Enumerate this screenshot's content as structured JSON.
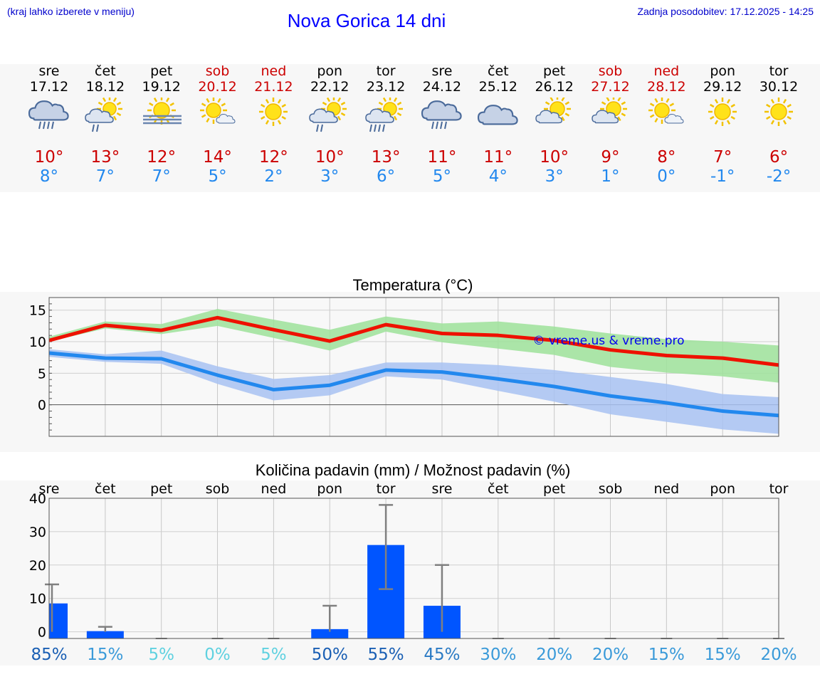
{
  "header": {
    "hint": "(kraj lahko izberete v meniju)",
    "title": "Nova Gorica 14 dni",
    "updated": "Zadnja posodobitev: 17.12.2025 - 14:25"
  },
  "colors": {
    "max_line": "#ee1100",
    "max_band": "#9ee29a",
    "min_line": "#2288ee",
    "min_band": "#a8c2f2",
    "bar": "#0055ff",
    "whisker": "#808080"
  },
  "days": [
    {
      "name": "sre",
      "date": "17.12",
      "weekend": false,
      "icon": "cloud-rain-icon",
      "tmax": "10°",
      "tmin": "8°"
    },
    {
      "name": "čet",
      "date": "18.12",
      "weekend": false,
      "icon": "sun-cloud-rain-icon",
      "tmax": "13°",
      "tmin": "7°"
    },
    {
      "name": "pet",
      "date": "19.12",
      "weekend": false,
      "icon": "sun-fog-icon",
      "tmax": "12°",
      "tmin": "7°"
    },
    {
      "name": "sob",
      "date": "20.12",
      "weekend": true,
      "icon": "sun-small-cloud-icon",
      "tmax": "14°",
      "tmin": "5°"
    },
    {
      "name": "ned",
      "date": "21.12",
      "weekend": true,
      "icon": "sun-icon",
      "tmax": "12°",
      "tmin": "2°"
    },
    {
      "name": "pon",
      "date": "22.12",
      "weekend": false,
      "icon": "sun-cloud-rain-icon",
      "tmax": "10°",
      "tmin": "3°"
    },
    {
      "name": "tor",
      "date": "23.12",
      "weekend": false,
      "icon": "sun-cloud-heavy-rain-icon",
      "tmax": "13°",
      "tmin": "6°"
    },
    {
      "name": "sre",
      "date": "24.12",
      "weekend": false,
      "icon": "cloud-rain-icon",
      "tmax": "11°",
      "tmin": "5°"
    },
    {
      "name": "čet",
      "date": "25.12",
      "weekend": false,
      "icon": "cloud-icon",
      "tmax": "11°",
      "tmin": "4°"
    },
    {
      "name": "pet",
      "date": "26.12",
      "weekend": false,
      "icon": "sun-cloud-icon",
      "tmax": "10°",
      "tmin": "3°"
    },
    {
      "name": "sob",
      "date": "27.12",
      "weekend": true,
      "icon": "sun-cloud-icon",
      "tmax": "9°",
      "tmin": "1°"
    },
    {
      "name": "ned",
      "date": "28.12",
      "weekend": true,
      "icon": "sun-small-cloud-icon",
      "tmax": "8°",
      "tmin": "0°"
    },
    {
      "name": "pon",
      "date": "29.12",
      "weekend": false,
      "icon": "sun-icon",
      "tmax": "7°",
      "tmin": "-1°"
    },
    {
      "name": "tor",
      "date": "30.12",
      "weekend": false,
      "icon": "sun-icon",
      "tmax": "6°",
      "tmin": "-2°"
    }
  ],
  "chart_data": [
    {
      "type": "line",
      "title": "Temperatura (°C)",
      "ylim": [
        -5,
        17
      ],
      "yticks": [
        0,
        5,
        10,
        15
      ],
      "grid": true,
      "watermark": "© vreme.us & vreme.pro",
      "x": [
        0,
        1,
        2,
        3,
        4,
        5,
        6,
        7,
        8,
        9,
        10,
        11,
        12,
        13
      ],
      "series": [
        {
          "name": "max",
          "values": [
            10.2,
            12.6,
            11.8,
            13.8,
            11.9,
            10.1,
            12.7,
            11.3,
            11.0,
            10.2,
            8.7,
            7.8,
            7.4,
            6.3
          ],
          "band_low": [
            10.0,
            12.1,
            11.2,
            12.5,
            10.6,
            8.6,
            11.6,
            9.9,
            8.9,
            7.9,
            6.0,
            5.1,
            4.5,
            3.5
          ],
          "band_high": [
            10.8,
            13.2,
            12.8,
            15.2,
            13.5,
            11.9,
            14.0,
            12.9,
            13.2,
            12.4,
            11.3,
            10.4,
            10.0,
            9.4
          ]
        },
        {
          "name": "min",
          "values": [
            8.2,
            7.4,
            7.3,
            4.7,
            2.4,
            3.1,
            5.5,
            5.2,
            4.1,
            2.9,
            1.4,
            0.3,
            -1.0,
            -1.7
          ],
          "band_low": [
            7.6,
            6.8,
            6.5,
            3.3,
            0.7,
            1.5,
            4.5,
            4.0,
            2.2,
            0.5,
            -1.5,
            -2.7,
            -3.9,
            -4.6
          ],
          "band_high": [
            8.8,
            8.0,
            8.6,
            6.1,
            4.1,
            4.7,
            6.7,
            6.7,
            6.3,
            5.5,
            4.4,
            3.3,
            1.7,
            1.2
          ]
        }
      ]
    },
    {
      "type": "bar",
      "title": "Količina padavin (mm) / Možnost padavin (%)",
      "ylim": [
        -2,
        40
      ],
      "yticks": [
        0,
        10,
        20,
        30,
        40
      ],
      "grid": true,
      "categories": [
        "sre",
        "čet",
        "pet",
        "sob",
        "ned",
        "pon",
        "tor",
        "sre",
        "čet",
        "pet",
        "sob",
        "ned",
        "pon",
        "tor"
      ],
      "values": [
        8.5,
        0.2,
        0,
        0,
        0,
        0.8,
        26,
        7.8,
        0,
        0,
        0,
        0,
        0,
        0
      ],
      "err_low": [
        0,
        0,
        0,
        0,
        0,
        0,
        12.8,
        0,
        0,
        0,
        0,
        0,
        0,
        0
      ],
      "err_high": [
        14.2,
        1.5,
        0,
        0,
        0,
        7.8,
        38,
        20,
        0,
        0,
        0,
        0,
        0,
        0
      ],
      "probabilities": [
        "85%",
        "15%",
        "5%",
        "0%",
        "5%",
        "50%",
        "55%",
        "45%",
        "30%",
        "20%",
        "20%",
        "15%",
        "15%",
        "20%"
      ],
      "probability_colors": [
        "#1a5fb4",
        "#3a9ad9",
        "#5fd1e0",
        "#5fd1e0",
        "#5fd1e0",
        "#1a5fb4",
        "#1a5fb4",
        "#2a7ac4",
        "#3a9ad9",
        "#3a9ad9",
        "#3a9ad9",
        "#3a9ad9",
        "#3a9ad9",
        "#3a9ad9"
      ]
    }
  ]
}
